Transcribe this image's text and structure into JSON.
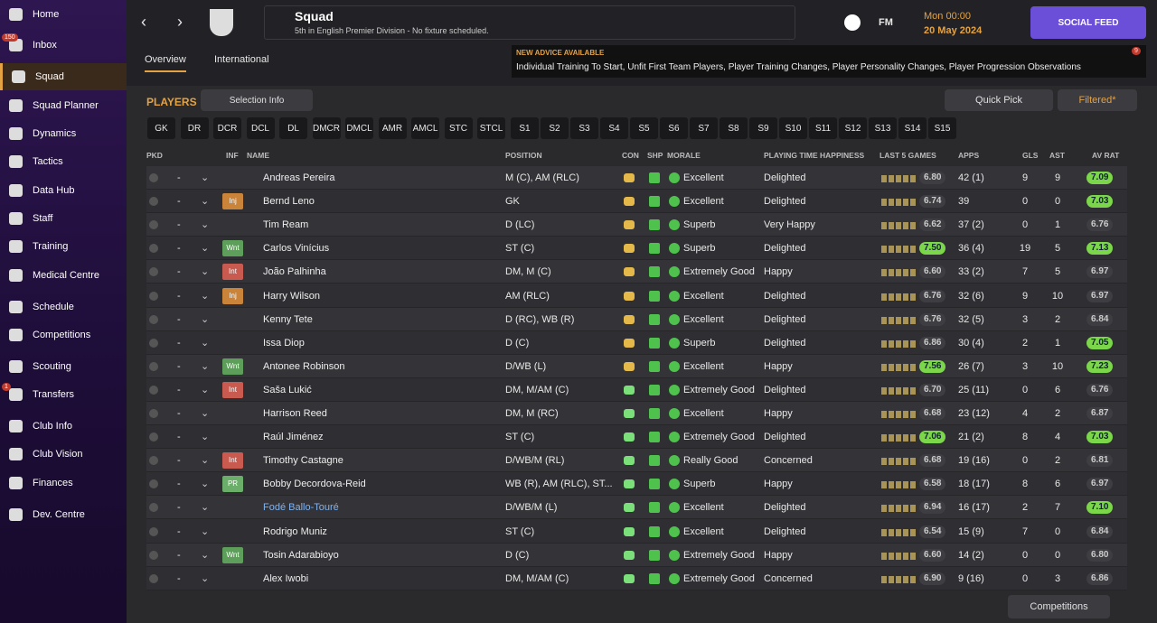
{
  "sidebar": {
    "items": [
      {
        "label": "Home"
      },
      {
        "label": "Inbox",
        "badge": "150"
      },
      {
        "label": "Squad"
      },
      {
        "label": "Squad Planner"
      },
      {
        "label": "Dynamics"
      },
      {
        "label": "Tactics"
      },
      {
        "label": "Data Hub"
      },
      {
        "label": "Staff"
      },
      {
        "label": "Training"
      },
      {
        "label": "Medical Centre"
      },
      {
        "label": "Schedule"
      },
      {
        "label": "Competitions"
      },
      {
        "label": "Scouting"
      },
      {
        "label": "Transfers",
        "badge": "1"
      },
      {
        "label": "Club Info"
      },
      {
        "label": "Club Vision"
      },
      {
        "label": "Finances"
      },
      {
        "label": "Dev. Centre"
      }
    ]
  },
  "header": {
    "title": "Squad",
    "subtitle": "5th in English Premier Division - No fixture scheduled.",
    "fm": "FM",
    "time": "Mon 00:00",
    "date": "20 May 2024",
    "social": "SOCIAL FEED",
    "tabs": [
      "Overview",
      "International"
    ],
    "advice_title": "NEW ADVICE AVAILABLE",
    "advice_text": "Individual Training To Start, Unfit First Team Players, Player Training Changes, Player Personality Changes, Player Progression Observations",
    "advice_badge": "9"
  },
  "toolbar": {
    "players": "PLAYERS",
    "selection": "Selection Info",
    "quick_pick": "Quick Pick",
    "filtered": "Filtered*"
  },
  "positions": [
    "GK",
    "DR",
    "DCR",
    "DCL",
    "DL",
    "DMCR",
    "DMCL",
    "AMR",
    "AMCL",
    "STC",
    "STCL",
    "S1",
    "S2",
    "S3",
    "S4",
    "S5",
    "S6",
    "S7",
    "S8",
    "S9",
    "S10",
    "S11",
    "S12",
    "S13",
    "S14",
    "S15"
  ],
  "table": {
    "columns": [
      "PKD",
      "INF",
      "NAME",
      "POSITION",
      "CON",
      "SHP",
      "MORALE",
      "PLAYING TIME HAPPINESS",
      "LAST 5 GAMES",
      "APPS",
      "GLS",
      "AST",
      "AV RAT"
    ],
    "rows": [
      {
        "pkd": "-",
        "inf": null,
        "name": "Andreas Pereira",
        "position": "M (C), AM (RLC)",
        "morale": "Excellent",
        "happiness": "Delighted",
        "last5": "6.80",
        "apps": "42 (1)",
        "gls": 9,
        "ast": 9,
        "avrat": "7.09"
      },
      {
        "pkd": "-",
        "inf": "Inj",
        "name": "Bernd Leno",
        "position": "GK",
        "morale": "Excellent",
        "happiness": "Delighted",
        "last5": "6.74",
        "apps": "39",
        "gls": 0,
        "ast": 0,
        "avrat": "7.03"
      },
      {
        "pkd": "-",
        "inf": null,
        "name": "Tim Ream",
        "position": "D (LC)",
        "morale": "Superb",
        "happiness": "Very Happy",
        "last5": "6.62",
        "apps": "37 (2)",
        "gls": 0,
        "ast": 1,
        "avrat": "6.76"
      },
      {
        "pkd": "-",
        "inf": "Wnt",
        "name": "Carlos Vinícius",
        "position": "ST (C)",
        "morale": "Superb",
        "happiness": "Delighted",
        "last5": "7.50",
        "apps": "36 (4)",
        "gls": 19,
        "ast": 5,
        "avrat": "7.13"
      },
      {
        "pkd": "-",
        "inf": "Int",
        "name": "João Palhinha",
        "position": "DM, M (C)",
        "morale": "Extremely Good",
        "happiness": "Happy",
        "last5": "6.60",
        "apps": "33 (2)",
        "gls": 7,
        "ast": 5,
        "avrat": "6.97"
      },
      {
        "pkd": "-",
        "inf": "Inj",
        "name": "Harry Wilson",
        "position": "AM (RLC)",
        "morale": "Excellent",
        "happiness": "Delighted",
        "last5": "6.76",
        "apps": "32 (6)",
        "gls": 9,
        "ast": 10,
        "avrat": "6.97"
      },
      {
        "pkd": "-",
        "inf": null,
        "name": "Kenny Tete",
        "position": "D (RC), WB (R)",
        "morale": "Excellent",
        "happiness": "Delighted",
        "last5": "6.76",
        "apps": "32 (5)",
        "gls": 3,
        "ast": 2,
        "avrat": "6.84"
      },
      {
        "pkd": "-",
        "inf": null,
        "name": "Issa Diop",
        "position": "D (C)",
        "morale": "Superb",
        "happiness": "Delighted",
        "last5": "6.86",
        "apps": "30 (4)",
        "gls": 2,
        "ast": 1,
        "avrat": "7.05"
      },
      {
        "pkd": "-",
        "inf": "Wnt",
        "name": "Antonee Robinson",
        "position": "D/WB (L)",
        "morale": "Excellent",
        "happiness": "Happy",
        "last5": "7.56",
        "apps": "26 (7)",
        "gls": 3,
        "ast": 10,
        "avrat": "7.23"
      },
      {
        "pkd": "-",
        "inf": "Int",
        "name": "Saša Lukić",
        "position": "DM, M/AM (C)",
        "morale": "Extremely Good",
        "happiness": "Delighted",
        "last5": "6.70",
        "apps": "25 (11)",
        "gls": 0,
        "ast": 6,
        "avrat": "6.76"
      },
      {
        "pkd": "-",
        "inf": null,
        "name": "Harrison Reed",
        "position": "DM, M (RC)",
        "morale": "Excellent",
        "happiness": "Happy",
        "last5": "6.68",
        "apps": "23 (12)",
        "gls": 4,
        "ast": 2,
        "avrat": "6.87"
      },
      {
        "pkd": "-",
        "inf": null,
        "name": "Raúl Jiménez",
        "position": "ST (C)",
        "morale": "Extremely Good",
        "happiness": "Delighted",
        "last5": "7.06",
        "apps": "21 (2)",
        "gls": 8,
        "ast": 4,
        "avrat": "7.03"
      },
      {
        "pkd": "-",
        "inf": "Int",
        "name": "Timothy Castagne",
        "position": "D/WB/M (RL)",
        "morale": "Really Good",
        "happiness": "Concerned",
        "last5": "6.68",
        "apps": "19 (16)",
        "gls": 0,
        "ast": 2,
        "avrat": "6.81"
      },
      {
        "pkd": "-",
        "inf": "PR",
        "name": "Bobby Decordova-Reid",
        "position": "WB (R), AM (RLC), ST...",
        "morale": "Superb",
        "happiness": "Happy",
        "last5": "6.58",
        "apps": "18 (17)",
        "gls": 8,
        "ast": 6,
        "avrat": "6.97"
      },
      {
        "pkd": "-",
        "inf": null,
        "name": "Fodé Ballo-Touré",
        "position": "D/WB/M (L)",
        "morale": "Excellent",
        "happiness": "Delighted",
        "last5": "6.94",
        "apps": "16 (17)",
        "gls": 2,
        "ast": 7,
        "avrat": "7.10"
      },
      {
        "pkd": "-",
        "inf": null,
        "name": "Rodrigo Muniz",
        "position": "ST (C)",
        "morale": "Excellent",
        "happiness": "Delighted",
        "last5": "6.54",
        "apps": "15 (9)",
        "gls": 7,
        "ast": 0,
        "avrat": "6.84"
      },
      {
        "pkd": "-",
        "inf": "Wnt",
        "name": "Tosin Adarabioyo",
        "position": "D (C)",
        "morale": "Extremely Good",
        "happiness": "Happy",
        "last5": "6.60",
        "apps": "14 (2)",
        "gls": 0,
        "ast": 0,
        "avrat": "6.80"
      },
      {
        "pkd": "-",
        "inf": null,
        "name": "Alex Iwobi",
        "position": "DM, M/AM (C)",
        "morale": "Extremely Good",
        "happiness": "Concerned",
        "last5": "6.90",
        "apps": "9 (16)",
        "gls": 0,
        "ast": 3,
        "avrat": "6.86"
      }
    ]
  },
  "footer": {
    "competitions": "Competitions"
  }
}
